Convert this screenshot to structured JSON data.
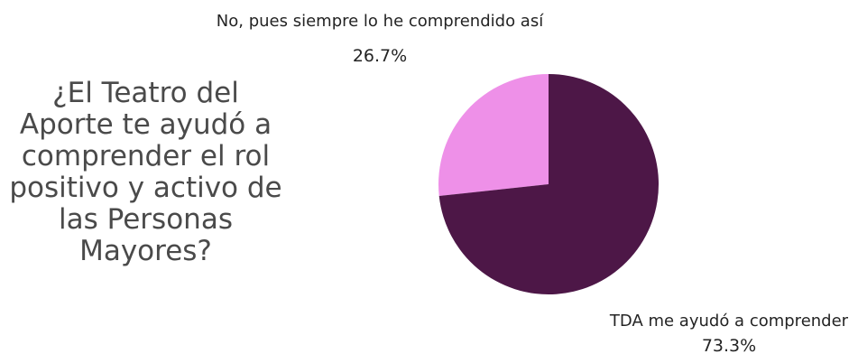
{
  "question": "¿El Teatro del\nAporte te ayudó a\ncomprender el rol\npositivo y activo de\nlas Personas\nMayores?",
  "chart_data": {
    "type": "pie",
    "title": "",
    "categories": [
      "No, pues siempre lo he comprendido así",
      "TDA me ayudó a comprender"
    ],
    "values": [
      26.7,
      73.3
    ],
    "value_labels": [
      "26.7%",
      "73.3%"
    ],
    "colors": [
      "#ee90e8",
      "#4d1747"
    ],
    "legend": "none"
  }
}
